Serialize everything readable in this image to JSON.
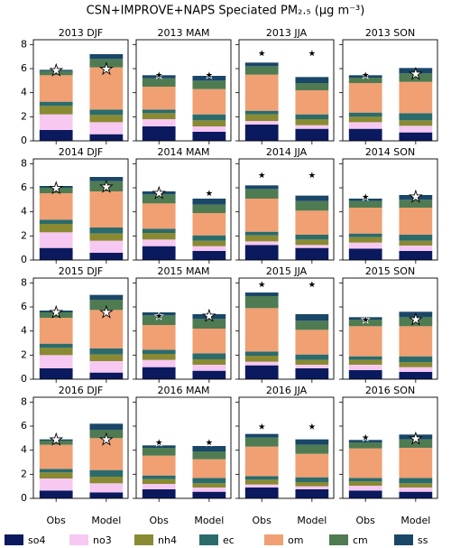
{
  "chart_data": {
    "type": "stacked-bar-grid",
    "title": "CSN+IMPROVE+NAPS Speciated PM₂.₅ (μg m⁻³)",
    "categories": [
      "Obs",
      "Model"
    ],
    "ylim": [
      0,
      8.4
    ],
    "yticks": [
      0,
      2,
      4,
      6,
      8
    ],
    "series": [
      {
        "name": "so4",
        "color": "#0b1a5e"
      },
      {
        "name": "no3",
        "color": "#f7c8f2"
      },
      {
        "name": "nh4",
        "color": "#8a8a32"
      },
      {
        "name": "ec",
        "color": "#2b6b6c"
      },
      {
        "name": "om",
        "color": "#f0a073"
      },
      {
        "name": "cm",
        "color": "#4f7b52"
      },
      {
        "name": "ss",
        "color": "#1a4768"
      }
    ],
    "panels": [
      {
        "title": "2013 DJF",
        "values": [
          [
            0.9,
            0.55
          ],
          [
            1.3,
            1.0
          ],
          [
            0.7,
            0.6
          ],
          [
            0.35,
            0.45
          ],
          [
            2.2,
            3.5
          ],
          [
            0.35,
            0.7
          ],
          [
            0.1,
            0.4
          ]
        ],
        "markers": [
          5.9,
          6.0
        ],
        "marker_colors": [
          "white",
          "white"
        ]
      },
      {
        "title": "2013 MAM",
        "values": [
          [
            1.2,
            0.75
          ],
          [
            0.6,
            0.45
          ],
          [
            0.5,
            0.5
          ],
          [
            0.3,
            0.5
          ],
          [
            1.9,
            2.1
          ],
          [
            0.7,
            0.7
          ],
          [
            0.25,
            0.4
          ]
        ],
        "markers": [
          5.5,
          5.5
        ],
        "marker_colors": [
          "black",
          "black"
        ]
      },
      {
        "title": "2013 JJA",
        "values": [
          [
            1.35,
            1.0
          ],
          [
            0.3,
            0.3
          ],
          [
            0.55,
            0.5
          ],
          [
            0.3,
            0.4
          ],
          [
            3.0,
            2.0
          ],
          [
            0.7,
            0.6
          ],
          [
            0.3,
            0.5
          ]
        ],
        "markers": [
          7.3,
          7.3
        ],
        "marker_colors": [
          "black",
          "black"
        ]
      },
      {
        "title": "2013 SON",
        "values": [
          [
            1.0,
            0.7
          ],
          [
            0.55,
            0.55
          ],
          [
            0.45,
            0.45
          ],
          [
            0.35,
            0.6
          ],
          [
            2.45,
            2.6
          ],
          [
            0.45,
            0.7
          ],
          [
            0.2,
            0.45
          ]
        ],
        "markers": [
          5.5,
          5.6
        ],
        "marker_colors": [
          "black",
          "white"
        ]
      },
      {
        "title": "2014 DJF",
        "values": [
          [
            1.0,
            0.6
          ],
          [
            1.3,
            1.0
          ],
          [
            0.7,
            0.6
          ],
          [
            0.35,
            0.5
          ],
          [
            2.2,
            3.0
          ],
          [
            0.45,
            0.85
          ],
          [
            0.15,
            0.35
          ]
        ],
        "markers": [
          6.0,
          6.1
        ],
        "marker_colors": [
          "white",
          "white"
        ]
      },
      {
        "title": "2014 MAM",
        "values": [
          [
            1.15,
            0.75
          ],
          [
            0.55,
            0.4
          ],
          [
            0.55,
            0.45
          ],
          [
            0.35,
            0.45
          ],
          [
            2.1,
            1.85
          ],
          [
            0.75,
            0.7
          ],
          [
            0.25,
            0.5
          ]
        ],
        "markers": [
          5.6,
          5.6
        ],
        "marker_colors": [
          "white",
          "black"
        ]
      },
      {
        "title": "2014 JJA",
        "values": [
          [
            1.25,
            1.0
          ],
          [
            0.3,
            0.25
          ],
          [
            0.5,
            0.45
          ],
          [
            0.3,
            0.4
          ],
          [
            2.75,
            2.0
          ],
          [
            0.8,
            0.8
          ],
          [
            0.3,
            0.45
          ]
        ],
        "markers": [
          7.1,
          7.1
        ],
        "marker_colors": [
          "black",
          "black"
        ]
      },
      {
        "title": "2014 SON",
        "values": [
          [
            0.95,
            0.75
          ],
          [
            0.5,
            0.45
          ],
          [
            0.45,
            0.4
          ],
          [
            0.3,
            0.5
          ],
          [
            2.15,
            2.25
          ],
          [
            0.55,
            0.65
          ],
          [
            0.2,
            0.4
          ]
        ],
        "markers": [
          5.3,
          5.3
        ],
        "marker_colors": [
          "black",
          "white"
        ]
      },
      {
        "title": "2015 DJF",
        "values": [
          [
            0.9,
            0.55
          ],
          [
            1.1,
            0.95
          ],
          [
            0.6,
            0.55
          ],
          [
            0.35,
            0.5
          ],
          [
            2.15,
            3.2
          ],
          [
            0.45,
            0.85
          ],
          [
            0.15,
            0.4
          ]
        ],
        "markers": [
          5.6,
          5.6
        ],
        "marker_colors": [
          "white",
          "white"
        ]
      },
      {
        "title": "2015 MAM",
        "values": [
          [
            1.0,
            0.7
          ],
          [
            0.6,
            0.5
          ],
          [
            0.5,
            0.45
          ],
          [
            0.35,
            0.5
          ],
          [
            2.05,
            2.05
          ],
          [
            0.8,
            0.8
          ],
          [
            0.25,
            0.4
          ]
        ],
        "markers": [
          5.3,
          5.3
        ],
        "marker_colors": [
          "black",
          "white"
        ]
      },
      {
        "title": "2015 JJA",
        "values": [
          [
            1.15,
            0.9
          ],
          [
            0.3,
            0.3
          ],
          [
            0.5,
            0.4
          ],
          [
            0.35,
            0.45
          ],
          [
            3.6,
            2.05
          ],
          [
            1.0,
            0.75
          ],
          [
            0.3,
            0.55
          ]
        ],
        "markers": [
          7.9,
          7.9
        ],
        "marker_colors": [
          "black",
          "black"
        ]
      },
      {
        "title": "2015 SON",
        "values": [
          [
            0.75,
            0.6
          ],
          [
            0.45,
            0.4
          ],
          [
            0.4,
            0.4
          ],
          [
            0.3,
            0.5
          ],
          [
            2.5,
            2.5
          ],
          [
            0.55,
            0.75
          ],
          [
            0.2,
            0.45
          ]
        ],
        "markers": [
          5.0,
          5.0
        ],
        "marker_colors": [
          "black",
          "white"
        ]
      },
      {
        "title": "2016 DJF",
        "values": [
          [
            0.65,
            0.5
          ],
          [
            1.0,
            0.75
          ],
          [
            0.5,
            0.55
          ],
          [
            0.3,
            0.55
          ],
          [
            2.0,
            2.65
          ],
          [
            0.35,
            0.7
          ],
          [
            0.1,
            0.5
          ]
        ],
        "markers": [
          4.9,
          4.9
        ],
        "marker_colors": [
          "white",
          "white"
        ]
      },
      {
        "title": "2016 MAM",
        "values": [
          [
            0.75,
            0.55
          ],
          [
            0.45,
            0.35
          ],
          [
            0.4,
            0.35
          ],
          [
            0.3,
            0.45
          ],
          [
            1.65,
            1.55
          ],
          [
            0.65,
            0.65
          ],
          [
            0.2,
            0.45
          ]
        ],
        "markers": [
          4.7,
          4.7
        ],
        "marker_colors": [
          "black",
          "black"
        ]
      },
      {
        "title": "2016 JJA",
        "values": [
          [
            0.9,
            0.75
          ],
          [
            0.25,
            0.25
          ],
          [
            0.4,
            0.35
          ],
          [
            0.3,
            0.4
          ],
          [
            2.45,
            1.95
          ],
          [
            0.75,
            0.75
          ],
          [
            0.3,
            0.45
          ]
        ],
        "markers": [
          6.0,
          6.0
        ],
        "marker_colors": [
          "black",
          "black"
        ]
      },
      {
        "title": "2016 SON",
        "values": [
          [
            0.65,
            0.55
          ],
          [
            0.4,
            0.35
          ],
          [
            0.35,
            0.35
          ],
          [
            0.3,
            0.45
          ],
          [
            2.45,
            2.5
          ],
          [
            0.5,
            0.7
          ],
          [
            0.2,
            0.4
          ]
        ],
        "markers": [
          5.1,
          5.0
        ],
        "marker_colors": [
          "black",
          "white"
        ]
      }
    ]
  }
}
